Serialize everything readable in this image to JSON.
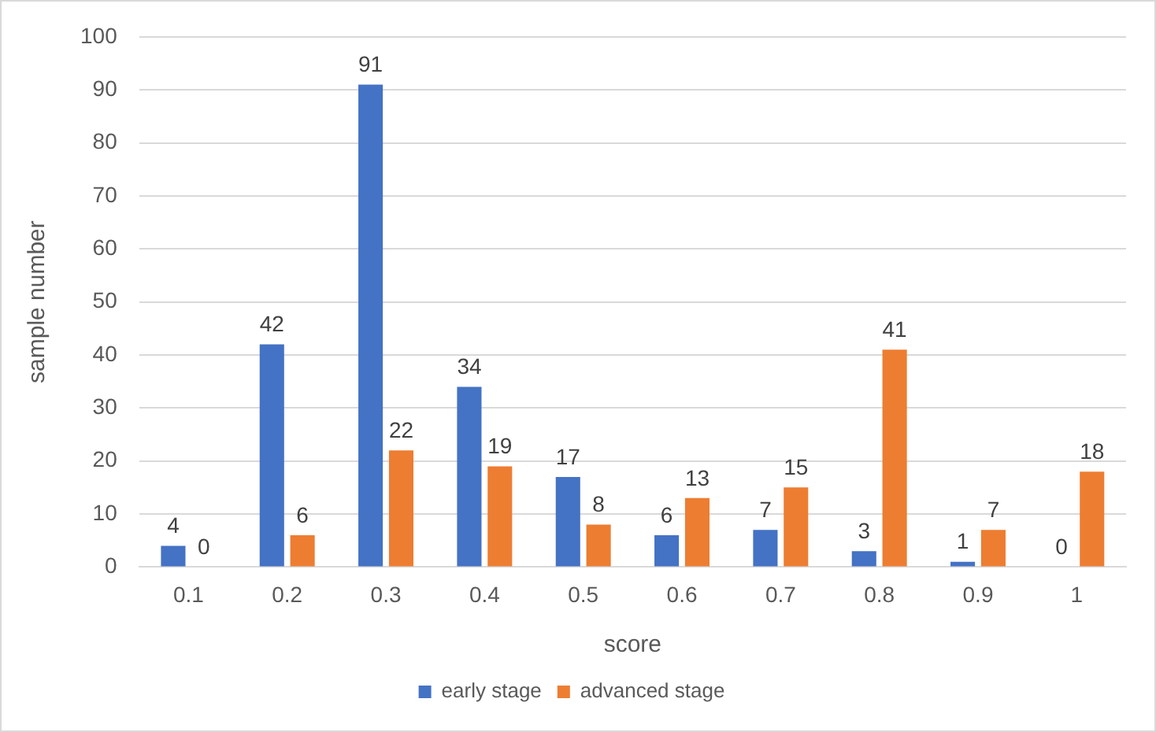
{
  "chart_data": {
    "type": "bar",
    "xlabel": "score",
    "ylabel": "sample number",
    "categories": [
      "0.1",
      "0.2",
      "0.3",
      "0.4",
      "0.5",
      "0.6",
      "0.7",
      "0.8",
      "0.9",
      "1"
    ],
    "series": [
      {
        "name": "early stage",
        "color": "#4472c4",
        "values": [
          4,
          42,
          91,
          34,
          17,
          6,
          7,
          3,
          1,
          0
        ]
      },
      {
        "name": "advanced stage",
        "color": "#ed7d31",
        "values": [
          0,
          6,
          22,
          19,
          8,
          13,
          15,
          41,
          7,
          18
        ]
      }
    ],
    "ylim": [
      0,
      100
    ],
    "yticks": [
      0,
      10,
      20,
      30,
      40,
      50,
      60,
      70,
      80,
      90,
      100
    ],
    "grid": "y",
    "legend": "bottom",
    "data_labels": true
  }
}
